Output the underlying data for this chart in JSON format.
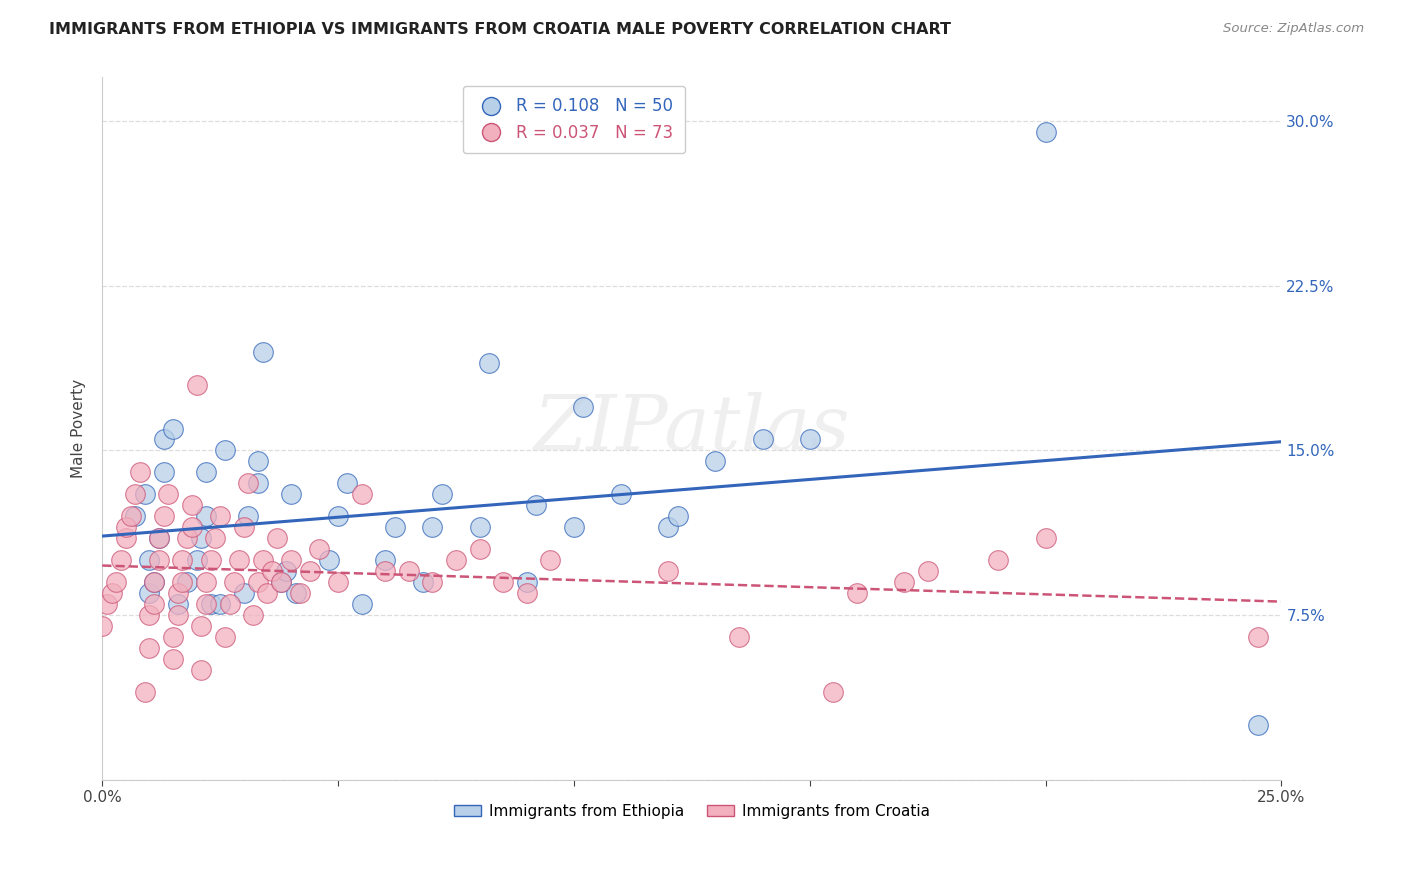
{
  "title": "IMMIGRANTS FROM ETHIOPIA VS IMMIGRANTS FROM CROATIA MALE POVERTY CORRELATION CHART",
  "source": "Source: ZipAtlas.com",
  "ylabel": "Male Poverty",
  "xlim": [
    0.0,
    0.25
  ],
  "ylim": [
    0.0,
    0.32
  ],
  "ethiopia_color": "#b8d0e8",
  "croatia_color": "#f2b0be",
  "ethiopia_line_color": "#3366bb",
  "croatia_line_color": "#cc5577",
  "watermark": "ZIPatlas",
  "ethiopia_x": [
    0.007,
    0.009,
    0.01,
    0.01,
    0.011,
    0.012,
    0.013,
    0.013,
    0.015,
    0.016,
    0.018,
    0.02,
    0.021,
    0.022,
    0.022,
    0.023,
    0.025,
    0.026,
    0.03,
    0.031,
    0.033,
    0.033,
    0.034,
    0.038,
    0.039,
    0.04,
    0.041,
    0.048,
    0.05,
    0.052,
    0.055,
    0.06,
    0.062,
    0.068,
    0.07,
    0.072,
    0.08,
    0.082,
    0.09,
    0.092,
    0.1,
    0.102,
    0.11,
    0.12,
    0.122,
    0.13,
    0.14,
    0.15,
    0.2,
    0.245
  ],
  "ethiopia_y": [
    0.12,
    0.13,
    0.1,
    0.085,
    0.09,
    0.11,
    0.14,
    0.155,
    0.16,
    0.08,
    0.09,
    0.1,
    0.11,
    0.12,
    0.14,
    0.08,
    0.08,
    0.15,
    0.085,
    0.12,
    0.135,
    0.145,
    0.195,
    0.09,
    0.095,
    0.13,
    0.085,
    0.1,
    0.12,
    0.135,
    0.08,
    0.1,
    0.115,
    0.09,
    0.115,
    0.13,
    0.115,
    0.19,
    0.09,
    0.125,
    0.115,
    0.17,
    0.13,
    0.115,
    0.12,
    0.145,
    0.155,
    0.155,
    0.295,
    0.025
  ],
  "croatia_x": [
    0.0,
    0.001,
    0.002,
    0.003,
    0.004,
    0.005,
    0.005,
    0.006,
    0.007,
    0.008,
    0.009,
    0.01,
    0.01,
    0.011,
    0.011,
    0.012,
    0.012,
    0.013,
    0.014,
    0.015,
    0.015,
    0.016,
    0.016,
    0.017,
    0.017,
    0.018,
    0.019,
    0.019,
    0.02,
    0.021,
    0.021,
    0.022,
    0.022,
    0.023,
    0.024,
    0.025,
    0.026,
    0.027,
    0.028,
    0.029,
    0.03,
    0.031,
    0.032,
    0.033,
    0.034,
    0.035,
    0.036,
    0.037,
    0.038,
    0.04,
    0.042,
    0.044,
    0.046,
    0.05,
    0.055,
    0.06,
    0.065,
    0.07,
    0.075,
    0.08,
    0.085,
    0.09,
    0.095,
    0.12,
    0.135,
    0.155,
    0.16,
    0.17,
    0.175,
    0.19,
    0.2,
    0.245
  ],
  "croatia_y": [
    0.07,
    0.08,
    0.085,
    0.09,
    0.1,
    0.11,
    0.115,
    0.12,
    0.13,
    0.14,
    0.04,
    0.06,
    0.075,
    0.08,
    0.09,
    0.1,
    0.11,
    0.12,
    0.13,
    0.055,
    0.065,
    0.075,
    0.085,
    0.09,
    0.1,
    0.11,
    0.115,
    0.125,
    0.18,
    0.05,
    0.07,
    0.08,
    0.09,
    0.1,
    0.11,
    0.12,
    0.065,
    0.08,
    0.09,
    0.1,
    0.115,
    0.135,
    0.075,
    0.09,
    0.1,
    0.085,
    0.095,
    0.11,
    0.09,
    0.1,
    0.085,
    0.095,
    0.105,
    0.09,
    0.13,
    0.095,
    0.095,
    0.09,
    0.1,
    0.105,
    0.09,
    0.085,
    0.1,
    0.095,
    0.065,
    0.04,
    0.085,
    0.09,
    0.095,
    0.1,
    0.11,
    0.065
  ]
}
